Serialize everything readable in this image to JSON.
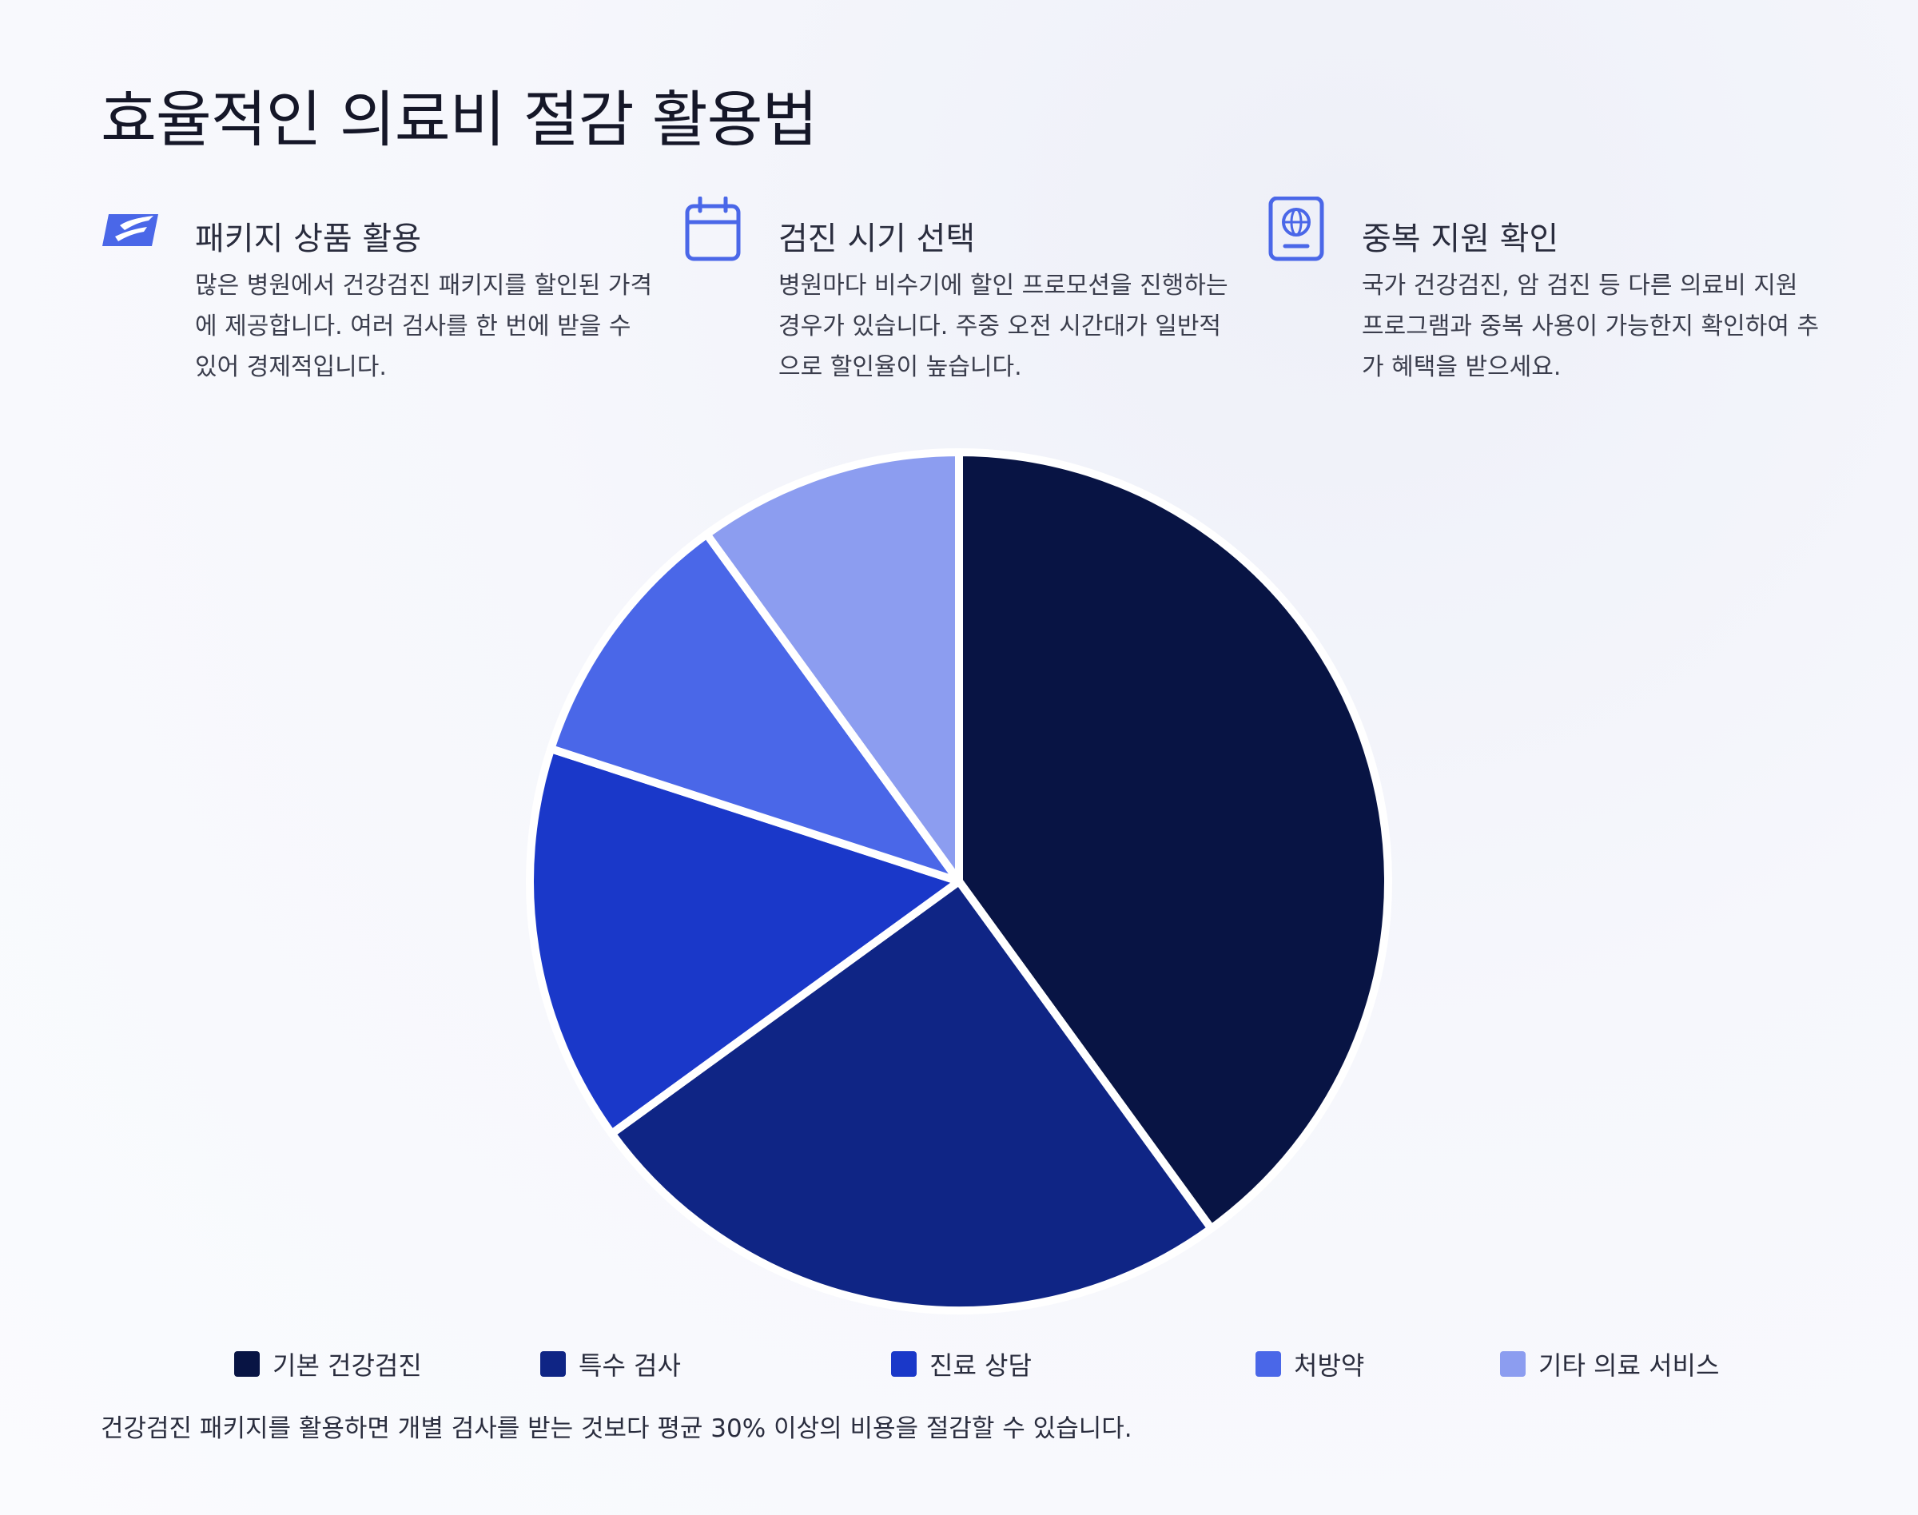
{
  "page": {
    "title": "효율적인 의료비 절감 활용법",
    "footnote": "건강검진 패키지를 활용하면 개별 검사를 받는 것보다 평균 30% 이상의 비용을 절감할 수 있습니다."
  },
  "tips": [
    {
      "icon": "usps-eagle-icon",
      "title": "패키지 상품 활용",
      "description": "많은 병원에서 건강검진 패키지를 할인된 가격에 제공합니다. 여러 검사를 한 번에 받을 수 있어 경제적입니다."
    },
    {
      "icon": "calendar-icon",
      "title": "검진 시기 선택",
      "description": "병원마다 비수기에 할인 프로모션을 진행하는 경우가 있습니다. 주중 오전 시간대가 일반적으로 할인율이 높습니다."
    },
    {
      "icon": "passport-icon",
      "title": "중복 지원 확인",
      "description": "국가 건강검진, 암 검진 등 다른 의료비 지원 프로그램과 중복 사용이 가능한지 확인하여 추가 혜택을 받으세요."
    }
  ],
  "colors": {
    "accent": "#4a67e8",
    "background": "#f6f7fc"
  },
  "chart_data": {
    "type": "pie",
    "title": "",
    "legend_position": "bottom",
    "categories": [
      "기본 건강검진",
      "특수 검사",
      "진료 상담",
      "처방약",
      "기타 의료 서비스"
    ],
    "values": [
      40,
      25,
      15,
      10,
      10
    ],
    "colors": [
      "#081444",
      "#0f2585",
      "#1a38c9",
      "#4a67e8",
      "#8c9df0"
    ]
  }
}
